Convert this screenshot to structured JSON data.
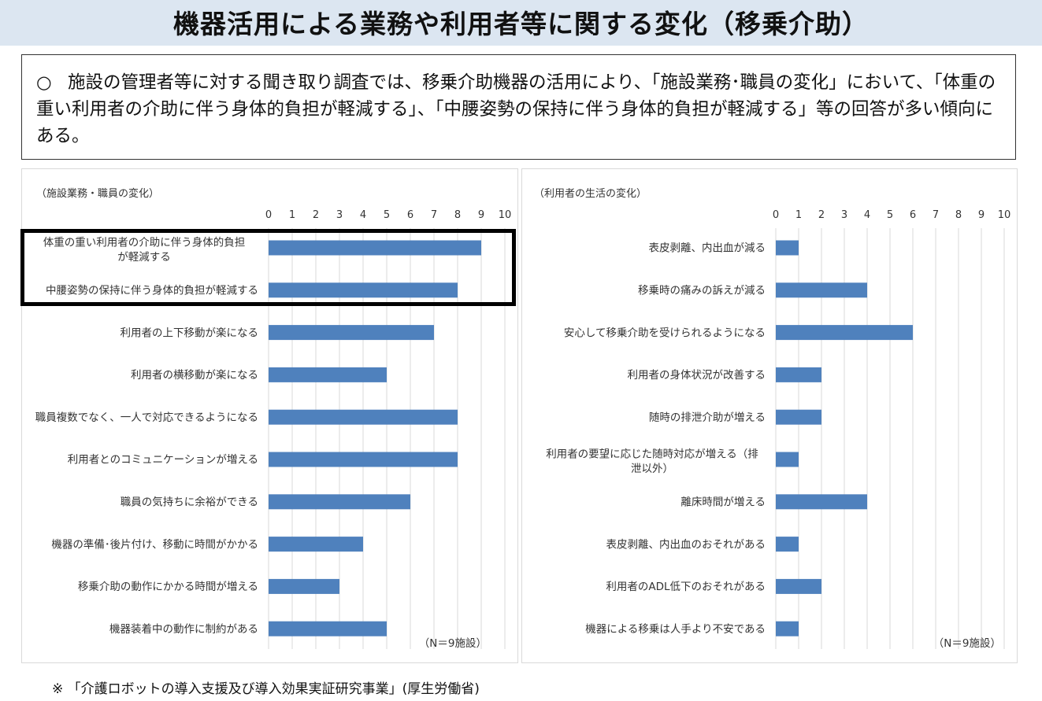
{
  "title": "機器活用による業務や利用者等に関する変化（移乗介助）",
  "summary": {
    "mark": "○",
    "text": "施設の管理者等に対する聞き取り調査では、移乗介助機器の活用により、「施設業務･職員の変化」において、「体重の重い利用者の介助に伴う身体的負担が軽減する」、「中腰姿勢の保持に伴う身体的負担が軽減する」等の回答が多い傾向にある。"
  },
  "footnote": "※ 「介護ロボットの導入支援及び導入効果実証研究事業」(厚生労働省)",
  "colors": {
    "bar": "#4f81bd",
    "grid": "#d9d9d9",
    "title_bg": "#dce6f1"
  },
  "chart_data": [
    {
      "type": "bar",
      "orientation": "horizontal",
      "title": "（施設業務・職員の変化）",
      "xlim": [
        0,
        10
      ],
      "ticks": [
        0,
        1,
        2,
        3,
        4,
        5,
        6,
        7,
        8,
        9,
        10
      ],
      "grid": true,
      "note": "（N＝9施設）",
      "categories": [
        "体重の重い利用者の介助に伴う身体的負担|が軽減する",
        "中腰姿勢の保持に伴う身体的負担が軽減する",
        "利用者の上下移動が楽になる",
        "利用者の横移動が楽になる",
        "職員複数でなく、一人で対応できるようになる",
        "利用者とのコミュニケーションが増える",
        "職員の気持ちに余裕ができる",
        "機器の準備･後片付け、移動に時間がかかる",
        "移乗介助の動作にかかる時間が増える",
        "機器装着中の動作に制約がある"
      ],
      "values": [
        9,
        8,
        7,
        5,
        8,
        8,
        6,
        4,
        3,
        5
      ]
    },
    {
      "type": "bar",
      "orientation": "horizontal",
      "title": "（利用者の生活の変化）",
      "xlim": [
        0,
        10
      ],
      "ticks": [
        0,
        1,
        2,
        3,
        4,
        5,
        6,
        7,
        8,
        9,
        10
      ],
      "grid": true,
      "note": "（N＝9施設）",
      "categories": [
        "表皮剥離、内出血が減る",
        "移乗時の痛みの訴えが減る",
        "安心して移乗介助を受けられるようになる",
        "利用者の身体状況が改善する",
        "随時の排泄介助が増える",
        "利用者の要望に応じた随時対応が増える（排|泄以外）",
        "離床時間が増える",
        "表皮剥離、内出血のおそれがある",
        "利用者のADL低下のおそれがある",
        "機器による移乗は人手より不安である"
      ],
      "values": [
        1,
        4,
        6,
        2,
        2,
        1,
        4,
        1,
        2,
        1
      ]
    }
  ]
}
